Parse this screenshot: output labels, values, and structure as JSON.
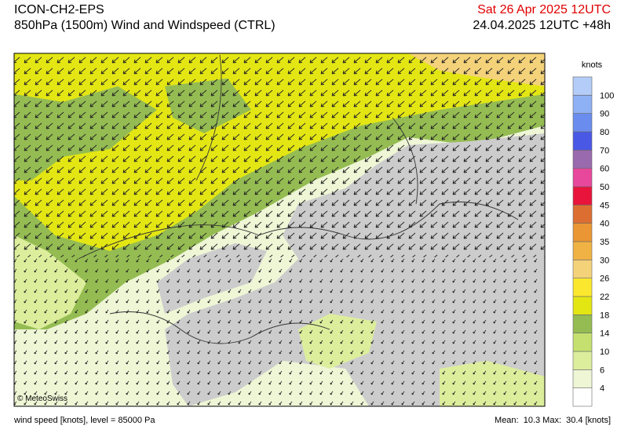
{
  "header": {
    "model": "ICON-CH2-EPS",
    "subtitle": "850hPa (1500m) Wind and Windspeed (CTRL)",
    "valid_time": "Sat 26 Apr 2025 12UTC",
    "run_time": "24.04.2025 12UTC +48h"
  },
  "map": {
    "copyright": "© MeteoSwiss"
  },
  "legend": {
    "title": "knots",
    "labels": [
      4,
      6,
      10,
      14,
      18,
      22,
      26,
      30,
      35,
      40,
      45,
      50,
      60,
      70,
      80,
      90,
      100
    ],
    "colors": [
      "#ffffff",
      "#eef6d6",
      "#dcee9c",
      "#c6e070",
      "#94bc52",
      "#e4e614",
      "#fbe82e",
      "#f4d27a",
      "#f0b244",
      "#ea9634",
      "#dc6e32",
      "#e8143c",
      "#e8489c",
      "#9a6aae",
      "#4a58e6",
      "#6a8cee",
      "#8eb0f4",
      "#b4ccf8"
    ]
  },
  "footer": {
    "left": "wind speed [knots], level = 85000 Pa",
    "right": "Mean:  10.3 Max:  30.4 [knots]"
  }
}
